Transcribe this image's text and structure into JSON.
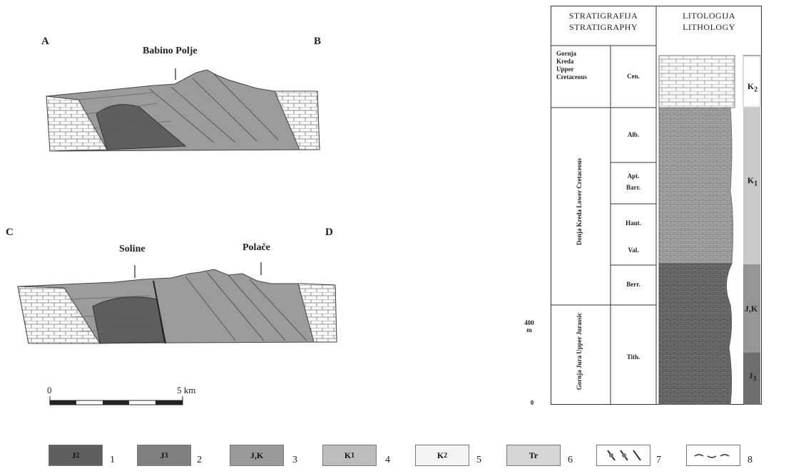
{
  "sections": {
    "top": {
      "left_label": "A",
      "right_label": "B",
      "place": "Babino Polje"
    },
    "bottom": {
      "left_label": "C",
      "right_label": "D",
      "place_1": "Soline",
      "place_2": "Polače"
    }
  },
  "scale_bar": {
    "start": "0",
    "end": "5 km"
  },
  "column": {
    "header_strat": [
      "STRATIGRAFIJA",
      "STRATIGRAPHY"
    ],
    "header_lith": [
      "LITOLOGIJA",
      "LITHOLOGY"
    ],
    "upper_cretaceous": [
      "Gornja",
      "Kreda",
      "Upper",
      "Cretaceous"
    ],
    "lower_cretaceous": "Donja Kreda   Lower Cretaceous",
    "upper_jurassic": "Gornja Jura   Upper Jurassic",
    "stages": [
      "Cen.",
      "Alb.",
      "Apt.",
      "Barr.",
      "Haut.",
      "Val.",
      "Berr.",
      "Tith."
    ],
    "scale_top": "400",
    "scale_unit": "m",
    "scale_bottom": "0",
    "units": [
      {
        "label": "K",
        "sub": "2"
      },
      {
        "label": "K",
        "sub": "1"
      },
      {
        "label": "J,K",
        "sub": ""
      },
      {
        "label": "J",
        "sub": "3"
      }
    ]
  },
  "legend": [
    {
      "label": "J",
      "sub": "2",
      "num": "1"
    },
    {
      "label": "J",
      "sub": "3",
      "num": "2"
    },
    {
      "label": "J,K",
      "sub": "",
      "num": "3"
    },
    {
      "label": "K",
      "sub": "1",
      "num": "4"
    },
    {
      "label": "K",
      "sub": "2",
      "num": "5"
    },
    {
      "label": "Tr",
      "sub": "",
      "num": "6"
    },
    {
      "label": "",
      "sub": "",
      "num": "7"
    },
    {
      "label": "",
      "sub": "",
      "num": "8"
    }
  ],
  "colors": {
    "j2": "#5e5e5e",
    "j3": "#808080",
    "jk": "#9a9a9a",
    "k1": "#bdbdbd",
    "k2": "#f4f4f4",
    "tr": "#d6d6d6",
    "line": "#444444"
  }
}
